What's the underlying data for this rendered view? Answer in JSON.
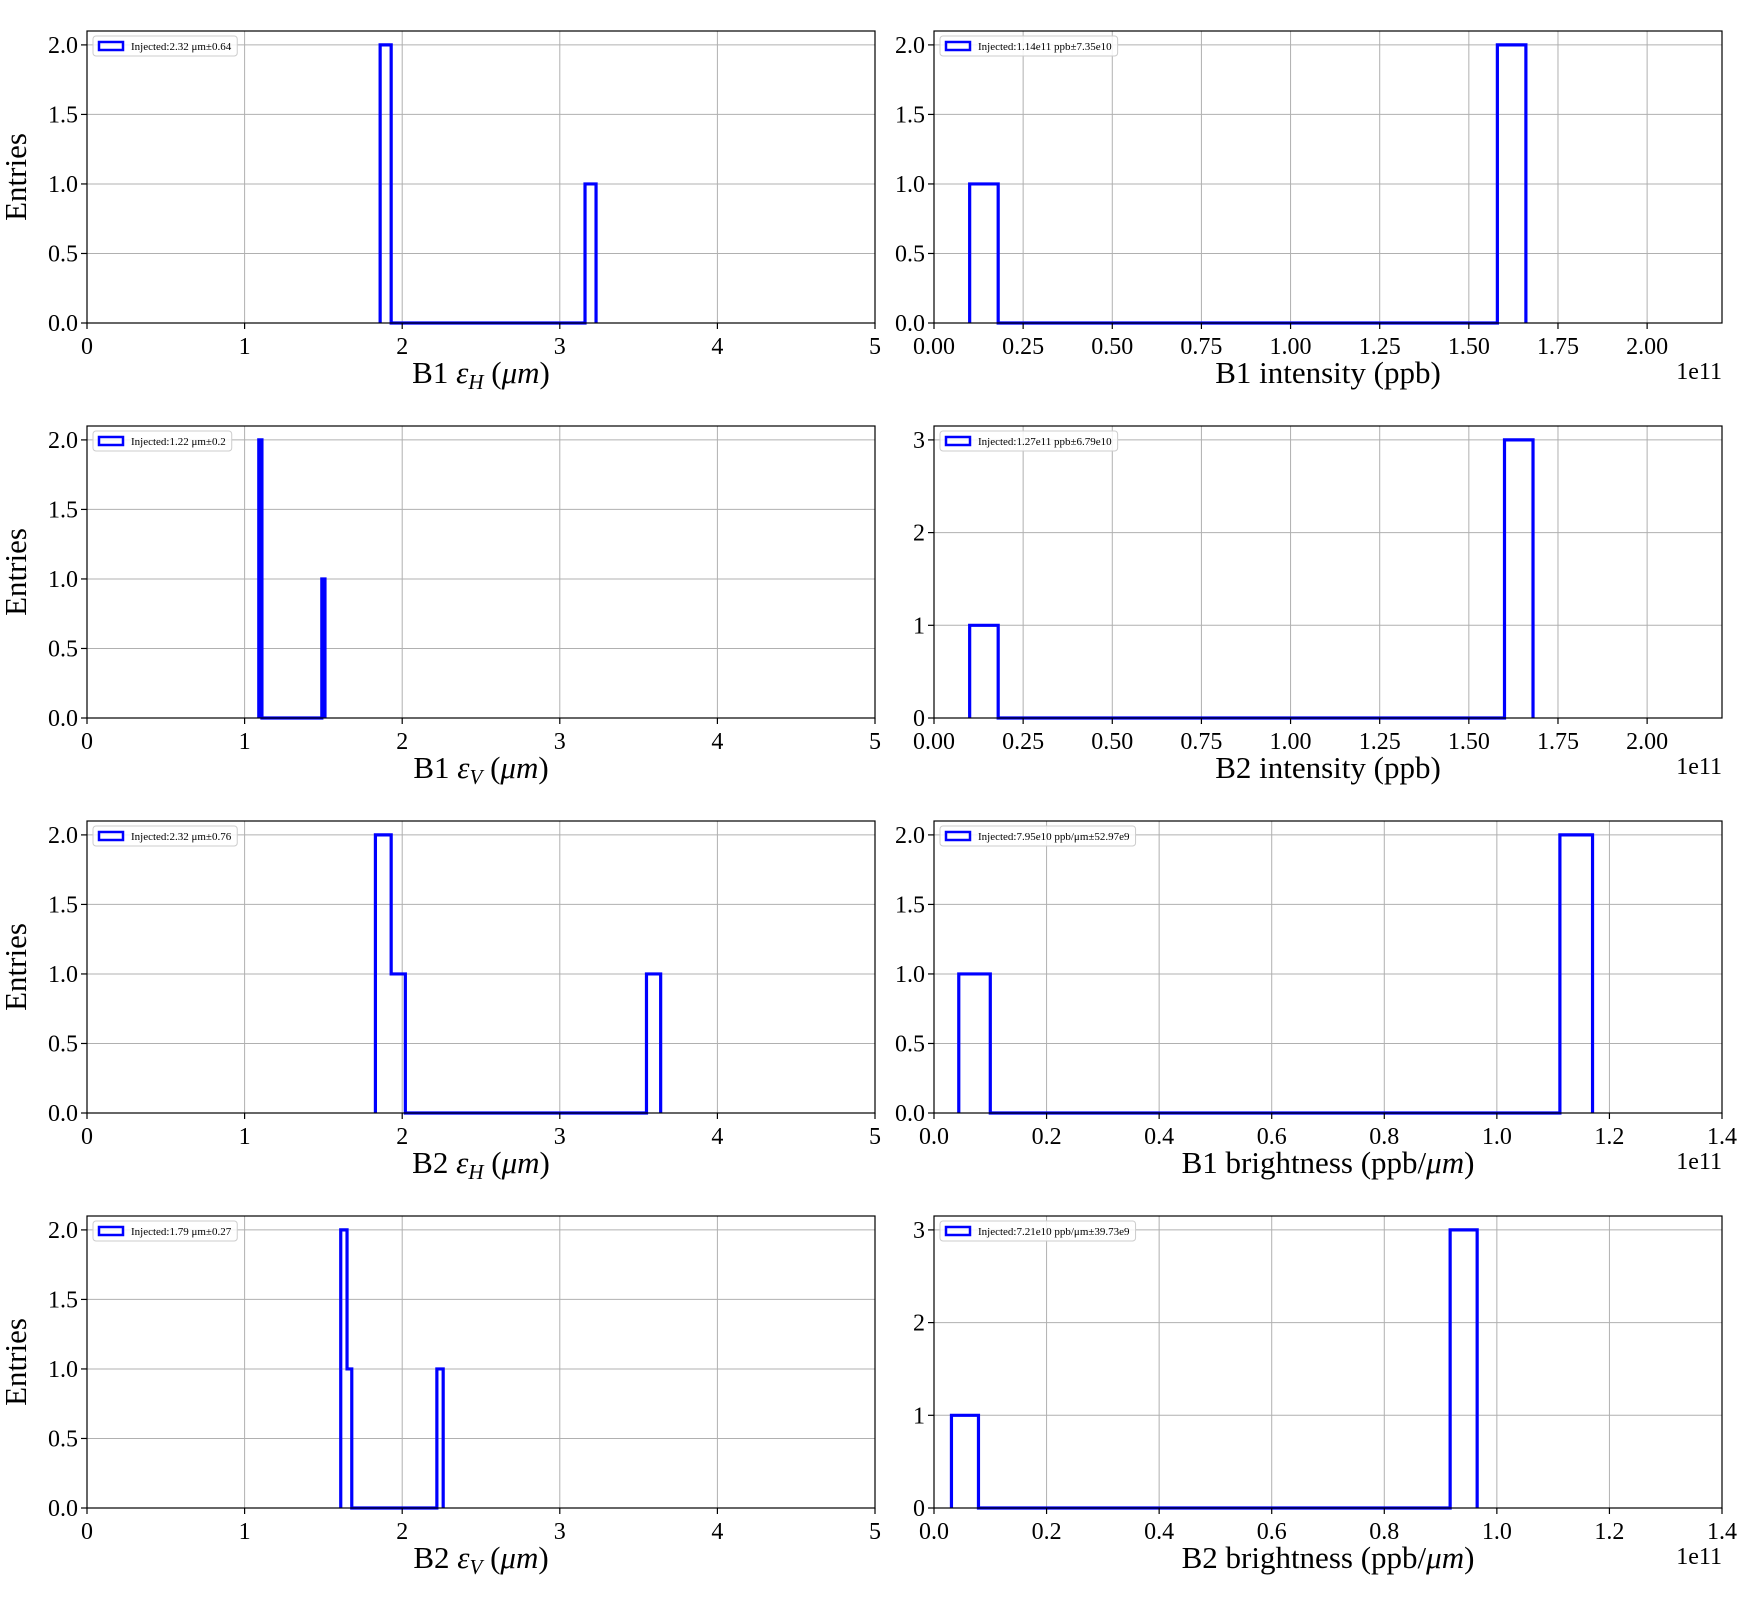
{
  "figure": {
    "ylabel": "Entries",
    "line_color": "#0000ff",
    "grid_color": "#b0b0b0",
    "grid": true
  },
  "chart_data": [
    {
      "type": "histogram",
      "xlabel_prefix": "B1 ",
      "xlabel_symbol": "ε",
      "xlabel_sub": "H",
      "xlabel_unit": " (μm)",
      "xlim": [
        0,
        5
      ],
      "ylim": [
        0,
        2.1
      ],
      "xticks": [
        0,
        1,
        2,
        3,
        4,
        5
      ],
      "xtick_labels": [
        "0",
        "1",
        "2",
        "3",
        "4",
        "5"
      ],
      "yticks": [
        0,
        0.5,
        1.0,
        1.5,
        2.0
      ],
      "ytick_labels": [
        "0.0",
        "0.5",
        "1.0",
        "1.5",
        "2.0"
      ],
      "offset_label": "",
      "legend": "Injected:2.32 μm±0.64",
      "bins": [
        [
          1.86,
          1.93,
          2
        ],
        [
          1.93,
          3.16,
          0
        ],
        [
          3.16,
          3.23,
          1
        ]
      ]
    },
    {
      "type": "histogram",
      "xlabel_prefix": "B1 intensity (ppb)",
      "xlabel_symbol": "",
      "xlabel_sub": "",
      "xlabel_unit": "",
      "xlim": [
        0,
        2.21
      ],
      "ylim": [
        0,
        2.1
      ],
      "xticks": [
        0,
        0.25,
        0.5,
        0.75,
        1.0,
        1.25,
        1.5,
        1.75,
        2.0
      ],
      "xtick_labels": [
        "0.00",
        "0.25",
        "0.50",
        "0.75",
        "1.00",
        "1.25",
        "1.50",
        "1.75",
        "2.00"
      ],
      "yticks": [
        0,
        0.5,
        1.0,
        1.5,
        2.0
      ],
      "ytick_labels": [
        "0.0",
        "0.5",
        "1.0",
        "1.5",
        "2.0"
      ],
      "offset_label": "1e11",
      "legend": "Injected:1.14e11 ppb±7.35e10",
      "bins": [
        [
          0.1,
          0.18,
          1
        ],
        [
          0.18,
          1.58,
          0
        ],
        [
          1.58,
          1.66,
          2
        ]
      ]
    },
    {
      "type": "histogram",
      "xlabel_prefix": "B1 ",
      "xlabel_symbol": "ε",
      "xlabel_sub": "V",
      "xlabel_unit": " (μm)",
      "xlim": [
        0,
        5
      ],
      "ylim": [
        0,
        2.1
      ],
      "xticks": [
        0,
        1,
        2,
        3,
        4,
        5
      ],
      "xtick_labels": [
        "0",
        "1",
        "2",
        "3",
        "4",
        "5"
      ],
      "yticks": [
        0,
        0.5,
        1.0,
        1.5,
        2.0
      ],
      "ytick_labels": [
        "0.0",
        "0.5",
        "1.0",
        "1.5",
        "2.0"
      ],
      "offset_label": "",
      "legend": "Injected:1.22 μm±0.2",
      "bins": [
        [
          1.09,
          1.11,
          2
        ],
        [
          1.11,
          1.49,
          0
        ],
        [
          1.49,
          1.51,
          1
        ]
      ]
    },
    {
      "type": "histogram",
      "xlabel_prefix": "B2 intensity (ppb)",
      "xlabel_symbol": "",
      "xlabel_sub": "",
      "xlabel_unit": "",
      "xlim": [
        0,
        2.21
      ],
      "ylim": [
        0,
        3.15
      ],
      "xticks": [
        0,
        0.25,
        0.5,
        0.75,
        1.0,
        1.25,
        1.5,
        1.75,
        2.0
      ],
      "xtick_labels": [
        "0.00",
        "0.25",
        "0.50",
        "0.75",
        "1.00",
        "1.25",
        "1.50",
        "1.75",
        "2.00"
      ],
      "yticks": [
        0,
        1,
        2,
        3
      ],
      "ytick_labels": [
        "0",
        "1",
        "2",
        "3"
      ],
      "offset_label": "1e11",
      "legend": "Injected:1.27e11 ppb±6.79e10",
      "bins": [
        [
          0.1,
          0.18,
          1
        ],
        [
          0.18,
          1.6,
          0
        ],
        [
          1.6,
          1.68,
          3
        ]
      ]
    },
    {
      "type": "histogram",
      "xlabel_prefix": "B2 ",
      "xlabel_symbol": "ε",
      "xlabel_sub": "H",
      "xlabel_unit": " (μm)",
      "xlim": [
        0,
        5
      ],
      "ylim": [
        0,
        2.1
      ],
      "xticks": [
        0,
        1,
        2,
        3,
        4,
        5
      ],
      "xtick_labels": [
        "0",
        "1",
        "2",
        "3",
        "4",
        "5"
      ],
      "yticks": [
        0,
        0.5,
        1.0,
        1.5,
        2.0
      ],
      "ytick_labels": [
        "0.0",
        "0.5",
        "1.0",
        "1.5",
        "2.0"
      ],
      "offset_label": "",
      "legend": "Injected:2.32 μm±0.76",
      "bins": [
        [
          1.83,
          1.93,
          2
        ],
        [
          1.93,
          2.02,
          1
        ],
        [
          2.02,
          3.55,
          0
        ],
        [
          3.55,
          3.64,
          1
        ]
      ]
    },
    {
      "type": "histogram",
      "xlabel_prefix": "B1 brightness (ppb/",
      "xlabel_symbol": "μm",
      "xlabel_sub": "",
      "xlabel_unit": ")",
      "xlim": [
        0,
        1.4
      ],
      "ylim": [
        0,
        2.1
      ],
      "xticks": [
        0,
        0.2,
        0.4,
        0.6,
        0.8,
        1.0,
        1.2,
        1.4
      ],
      "xtick_labels": [
        "0.0",
        "0.2",
        "0.4",
        "0.6",
        "0.8",
        "1.0",
        "1.2",
        "1.4"
      ],
      "yticks": [
        0,
        0.5,
        1.0,
        1.5,
        2.0
      ],
      "ytick_labels": [
        "0.0",
        "0.5",
        "1.0",
        "1.5",
        "2.0"
      ],
      "offset_label": "1e11",
      "legend": "Injected:7.95e10 ppb/μm±52.97e9",
      "bins": [
        [
          0.044,
          0.1,
          1
        ],
        [
          0.1,
          1.112,
          0
        ],
        [
          1.112,
          1.17,
          2
        ]
      ]
    },
    {
      "type": "histogram",
      "xlabel_prefix": "B2 ",
      "xlabel_symbol": "ε",
      "xlabel_sub": "V",
      "xlabel_unit": " (μm)",
      "xlim": [
        0,
        5
      ],
      "ylim": [
        0,
        2.1
      ],
      "xticks": [
        0,
        1,
        2,
        3,
        4,
        5
      ],
      "xtick_labels": [
        "0",
        "1",
        "2",
        "3",
        "4",
        "5"
      ],
      "yticks": [
        0,
        0.5,
        1.0,
        1.5,
        2.0
      ],
      "ytick_labels": [
        "0.0",
        "0.5",
        "1.0",
        "1.5",
        "2.0"
      ],
      "offset_label": "",
      "legend": "Injected:1.79 μm±0.27",
      "bins": [
        [
          1.61,
          1.65,
          2
        ],
        [
          1.65,
          1.68,
          1
        ],
        [
          1.68,
          2.22,
          0
        ],
        [
          2.22,
          2.26,
          1
        ]
      ]
    },
    {
      "type": "histogram",
      "xlabel_prefix": "B2 brightness (ppb/",
      "xlabel_symbol": "μm",
      "xlabel_sub": "",
      "xlabel_unit": ")",
      "xlim": [
        0,
        1.4
      ],
      "ylim": [
        0,
        3.15
      ],
      "xticks": [
        0,
        0.2,
        0.4,
        0.6,
        0.8,
        1.0,
        1.2,
        1.4
      ],
      "xtick_labels": [
        "0.0",
        "0.2",
        "0.4",
        "0.6",
        "0.8",
        "1.0",
        "1.2",
        "1.4"
      ],
      "yticks": [
        0,
        1,
        2,
        3
      ],
      "ytick_labels": [
        "0",
        "1",
        "2",
        "3"
      ],
      "offset_label": "1e11",
      "legend": "Injected:7.21e10 ppb/μm±39.73e9",
      "bins": [
        [
          0.031,
          0.079,
          1
        ],
        [
          0.079,
          0.917,
          0
        ],
        [
          0.917,
          0.965,
          3
        ]
      ]
    }
  ]
}
